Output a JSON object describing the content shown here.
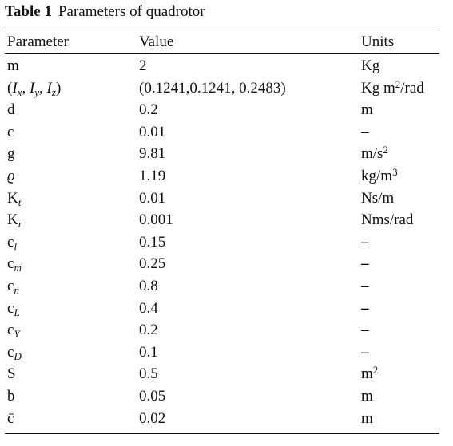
{
  "caption": {
    "number": "Table 1",
    "title": "Parameters of quadrotor"
  },
  "headers": [
    "Parameter",
    "Value",
    "Units"
  ],
  "rows": [
    {
      "parameter": "m",
      "value": "2",
      "units": "Kg"
    },
    {
      "parameter": "(Ix, Iy, Iz)",
      "value": "(0.1241,0.1241, 0.2483)",
      "units": "Kg m2/rad"
    },
    {
      "parameter": "d",
      "value": "0.2",
      "units": "m"
    },
    {
      "parameter": "c",
      "value": "0.01",
      "units": "–"
    },
    {
      "parameter": "g",
      "value": "9.81",
      "units": "m/s2"
    },
    {
      "parameter": "ϱ",
      "value": "1.19",
      "units": "kg/m3"
    },
    {
      "parameter": "Kt",
      "value": "0.01",
      "units": "Ns/m"
    },
    {
      "parameter": "Kr",
      "value": "0.001",
      "units": "Nms/rad"
    },
    {
      "parameter": "cl",
      "value": "0.15",
      "units": "–"
    },
    {
      "parameter": "cm",
      "value": "0.25",
      "units": "–"
    },
    {
      "parameter": "cn",
      "value": "0.8",
      "units": "–"
    },
    {
      "parameter": "cL",
      "value": "0.4",
      "units": "–"
    },
    {
      "parameter": "cY",
      "value": "0.2",
      "units": "–"
    },
    {
      "parameter": "cD",
      "value": "0.1",
      "units": "–"
    },
    {
      "parameter": "S",
      "value": "0.5",
      "units": "m2"
    },
    {
      "parameter": "b",
      "value": "0.05",
      "units": "m"
    },
    {
      "parameter": "c̄",
      "value": "0.02",
      "units": "m"
    }
  ]
}
